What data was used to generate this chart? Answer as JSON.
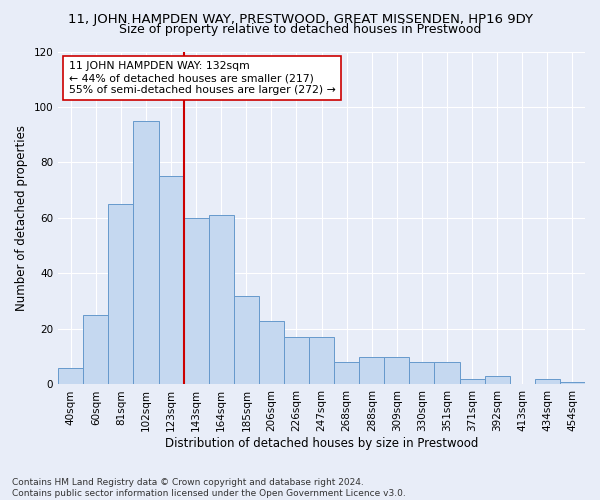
{
  "title": "11, JOHN HAMPDEN WAY, PRESTWOOD, GREAT MISSENDEN, HP16 9DY",
  "subtitle": "Size of property relative to detached houses in Prestwood",
  "xlabel": "Distribution of detached houses by size in Prestwood",
  "ylabel": "Number of detached properties",
  "bar_labels": [
    "40sqm",
    "60sqm",
    "81sqm",
    "102sqm",
    "123sqm",
    "143sqm",
    "164sqm",
    "185sqm",
    "206sqm",
    "226sqm",
    "247sqm",
    "268sqm",
    "288sqm",
    "309sqm",
    "330sqm",
    "351sqm",
    "371sqm",
    "392sqm",
    "413sqm",
    "434sqm",
    "454sqm"
  ],
  "bar_values": [
    6,
    25,
    65,
    95,
    75,
    60,
    61,
    32,
    23,
    17,
    17,
    8,
    10,
    10,
    8,
    8,
    2,
    3,
    0,
    2,
    1
  ],
  "bar_color": "#c5d8f0",
  "bar_edgecolor": "#6699cc",
  "bar_linewidth": 0.7,
  "vline_color": "#cc0000",
  "vline_linewidth": 1.5,
  "vline_pos": 4.5,
  "ylim": [
    0,
    120
  ],
  "yticks": [
    0,
    20,
    40,
    60,
    80,
    100,
    120
  ],
  "annotation_line1": "11 JOHN HAMPDEN WAY: 132sqm",
  "annotation_line2": "← 44% of detached houses are smaller (217)",
  "annotation_line3": "55% of semi-detached houses are larger (272) →",
  "background_color": "#e8edf8",
  "plot_bg_color": "#e8edf8",
  "footer": "Contains HM Land Registry data © Crown copyright and database right 2024.\nContains public sector information licensed under the Open Government Licence v3.0.",
  "title_fontsize": 9.5,
  "subtitle_fontsize": 9,
  "xlabel_fontsize": 8.5,
  "ylabel_fontsize": 8.5,
  "annotation_fontsize": 7.8,
  "grid_color": "#ffffff",
  "tick_fontsize": 7.5,
  "footer_fontsize": 6.5
}
